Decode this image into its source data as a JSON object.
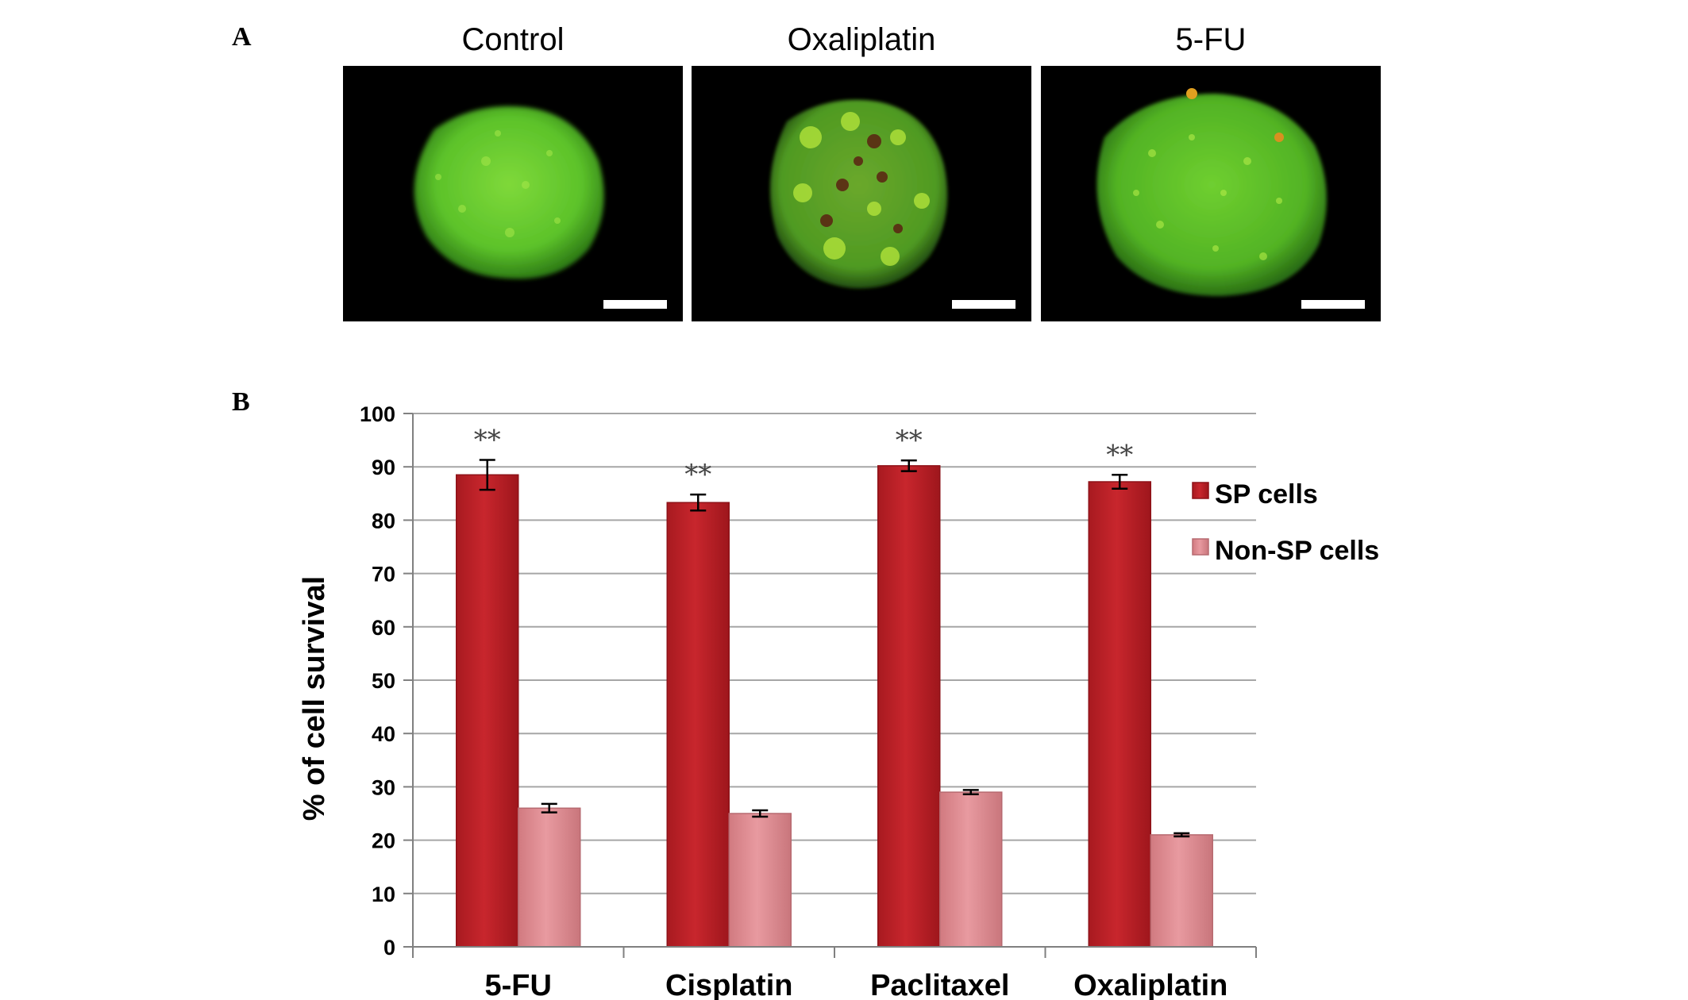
{
  "panel_a": {
    "letter": "A",
    "images": [
      {
        "title": "Control"
      },
      {
        "title": "Oxaliplatin"
      },
      {
        "title": "5-FU"
      }
    ]
  },
  "panel_b": {
    "letter": "B"
  },
  "colors": {
    "sp": "#c8262d",
    "non_sp": "#e89aa0",
    "grid": "#a6a6a6"
  },
  "chart_data": {
    "type": "bar",
    "title": "",
    "xlabel": "",
    "ylabel": "% of cell survival",
    "ylim": [
      0,
      100
    ],
    "yticks": [
      0,
      10,
      20,
      30,
      40,
      50,
      60,
      70,
      80,
      90,
      100
    ],
    "grid": true,
    "legend_position": "right",
    "categories": [
      "5-FU",
      "Cisplatin",
      "Paclitaxel",
      "Oxaliplatin"
    ],
    "series": [
      {
        "name": "SP cells",
        "values": [
          88.5,
          83.3,
          90.2,
          87.2
        ],
        "errors": [
          2.8,
          1.5,
          1.0,
          1.3
        ]
      },
      {
        "name": "Non-SP cells",
        "values": [
          26.0,
          25.0,
          29.0,
          21.0
        ],
        "errors": [
          0.8,
          0.6,
          0.4,
          0.3
        ]
      }
    ],
    "annotations": [
      "**",
      "**",
      "**",
      "**"
    ]
  }
}
